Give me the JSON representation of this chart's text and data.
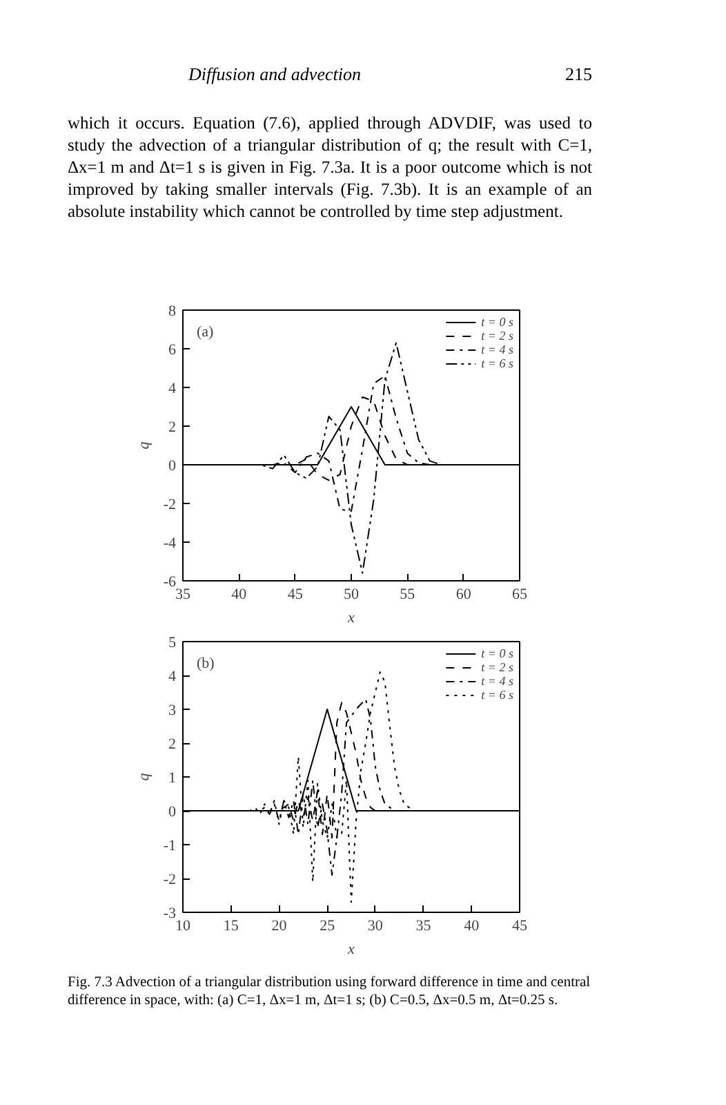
{
  "chart_data": [
    {
      "type": "line",
      "title": "Diffusion and advection",
      "annotations": [
        "215",
        "which it occurs. Equation (7.6), applied through ADVDIF, was used to study the advection of a triangular distribution of q; the result with C=1, Δx=1 m and Δt=1 s is given in Fig. 7.3a. It is a poor outcome which is not improved by taking smaller intervals (Fig. 7.3b). It is an example of an absolute instability which cannot be controlled by time step adjustment.",
        "(a)"
      ],
      "xlabel": "x",
      "ylabel": "q",
      "xlim": [
        35,
        65
      ],
      "ylim": [
        -6,
        8
      ],
      "xticks": [
        35,
        40,
        45,
        50,
        55,
        60,
        65
      ],
      "yticks": [
        -6,
        -4,
        -2,
        0,
        2,
        4,
        6,
        8
      ],
      "grid": false,
      "legend": "top right",
      "marker": "none",
      "series": [
        {
          "name": "t = 0 s",
          "color": "#000000",
          "line_style": "solid",
          "x": [
            35,
            47,
            48,
            49,
            50,
            51,
            52,
            53,
            65
          ],
          "values": [
            0,
            0,
            1,
            2,
            3,
            2,
            1,
            0,
            0
          ]
        },
        {
          "name": "t = 2 s",
          "color": "#000000",
          "line_style": "dashed",
          "x": [
            35,
            45,
            46,
            47,
            48,
            49,
            50,
            51,
            52,
            53,
            54,
            55,
            65
          ],
          "values": [
            0,
            0,
            0.3,
            -0.5,
            -0.8,
            -0.5,
            2,
            3.5,
            3.3,
            1.5,
            0.3,
            0,
            0
          ]
        },
        {
          "name": "t = 4 s",
          "color": "#000000",
          "line_style": "dashdot",
          "x": [
            35,
            43,
            44,
            45,
            46,
            47,
            48,
            49,
            50,
            51,
            52,
            53,
            54,
            55,
            56,
            57,
            65
          ],
          "values": [
            0,
            0,
            0.1,
            -0.4,
            0.4,
            0.6,
            0.2,
            -2.3,
            -2.4,
            0.8,
            4.2,
            4.6,
            2.4,
            0.6,
            0.1,
            0,
            0
          ]
        },
        {
          "name": "t = 6 s",
          "color": "#000000",
          "line_style": "dashdotdot",
          "x": [
            35,
            41,
            42,
            43,
            44,
            45,
            46,
            47,
            48,
            49,
            50,
            51,
            52,
            53,
            54,
            55,
            56,
            57,
            58,
            59,
            65
          ],
          "values": [
            0,
            0,
            0,
            -0.2,
            0.5,
            -0.4,
            -0.7,
            -0.1,
            2.5,
            1.8,
            -3.1,
            -5.6,
            -1.8,
            4.4,
            6.3,
            3.8,
            1.3,
            0.2,
            0,
            0,
            0
          ]
        }
      ]
    },
    {
      "type": "line",
      "annotations": [
        "(b)",
        "Fig. 7.3 Advection of a triangular distribution using forward difference in time and central difference in space, with: (a) C=1, Δx=1 m, Δt=1 s; (b) C=0.5, Δx=0.5 m, Δt=0.25 s."
      ],
      "xlabel": "x",
      "ylabel": "q",
      "xlim": [
        10,
        45
      ],
      "ylim": [
        -3,
        5
      ],
      "xticks": [
        10,
        15,
        20,
        25,
        30,
        35,
        40,
        45
      ],
      "yticks": [
        -3,
        -2,
        -1,
        0,
        1,
        2,
        3,
        4,
        5
      ],
      "grid": false,
      "legend": "top right",
      "marker": "none",
      "series": [
        {
          "name": "t = 0 s",
          "color": "#000000",
          "line_style": "solid",
          "x": [
            10,
            22,
            25,
            28,
            45
          ],
          "values": [
            0,
            0,
            3,
            0,
            0
          ]
        },
        {
          "name": "t = 2 s",
          "color": "#000000",
          "line_style": "dashed",
          "x": [
            10,
            20,
            21,
            21.5,
            22,
            22.5,
            23,
            23.5,
            24,
            24.5,
            25,
            25.5,
            26,
            26.5,
            27,
            27.5,
            28,
            28.5,
            29,
            29.5,
            30,
            45
          ],
          "values": [
            0,
            0,
            0.2,
            -0.3,
            0.3,
            -0.2,
            0.4,
            -0.3,
            0.6,
            -0.7,
            0.5,
            -0.8,
            2.6,
            3.2,
            2.9,
            2.3,
            1.7,
            0.9,
            0.4,
            0.1,
            0,
            0
          ]
        },
        {
          "name": "t = 4 s",
          "color": "#000000",
          "line_style": "dashdot",
          "x": [
            10,
            18,
            18.5,
            19,
            19.5,
            20,
            20.5,
            21,
            21.5,
            22,
            22.5,
            23,
            23.5,
            24,
            24.5,
            25,
            25.5,
            26,
            26.5,
            27,
            27.5,
            28,
            29,
            29.5,
            30,
            30.5,
            31,
            31.5,
            32,
            45
          ],
          "values": [
            0,
            0,
            0.1,
            -0.1,
            0.2,
            -0.3,
            0.3,
            -0.2,
            0.3,
            -0.7,
            0.5,
            -0.4,
            0.9,
            -0.5,
            0.2,
            -0.6,
            -1.9,
            -0.8,
            0.5,
            2.6,
            2.8,
            3,
            3.3,
            2.7,
            1.3,
            0.6,
            0.2,
            0.1,
            0,
            0
          ]
        },
        {
          "name": "t = 6 s",
          "color": "#000000",
          "line_style": "dotted",
          "x": [
            10,
            17,
            17.5,
            18,
            18.5,
            19,
            19.5,
            20,
            20.5,
            21,
            21.5,
            22,
            22.5,
            23,
            23.5,
            24,
            24.5,
            25,
            25.5,
            26,
            26.5,
            27,
            27.5,
            28,
            28.5,
            29,
            29.5,
            30,
            30.5,
            31,
            31.5,
            32,
            32.5,
            33,
            33.5,
            34,
            45
          ],
          "values": [
            0,
            0,
            0.1,
            -0.1,
            0.2,
            -0.1,
            0.3,
            -0.4,
            0.3,
            0.1,
            -0.7,
            1.6,
            -0.5,
            0.9,
            -2.1,
            0.8,
            -0.3,
            -0.8,
            0.2,
            -0.8,
            -0.7,
            0.9,
            -2.7,
            -0.3,
            1.2,
            2,
            2.9,
            3.5,
            4.1,
            3.8,
            2.5,
            1.3,
            0.6,
            0.2,
            0.1,
            0,
            0
          ]
        }
      ]
    }
  ]
}
